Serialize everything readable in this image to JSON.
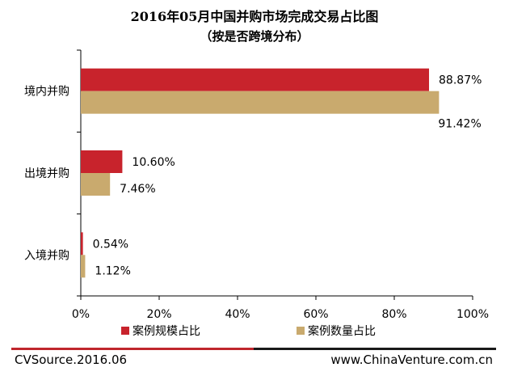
{
  "chart_data": {
    "type": "bar",
    "orientation": "horizontal",
    "title": "2016年05月中国并购市场完成交易占比图",
    "subtitle": "（按是否跨境分布）",
    "categories": [
      "境内并购",
      "出境并购",
      "入境并购"
    ],
    "series": [
      {
        "name": "案例规模占比",
        "color": "#c8232c",
        "values": [
          88.87,
          10.6,
          0.54
        ],
        "labels": [
          "88.87%",
          "10.60%",
          "0.54%"
        ]
      },
      {
        "name": "案例数量占比",
        "color": "#c9aa6e",
        "values": [
          91.42,
          7.46,
          1.12
        ],
        "labels": [
          "91.42%",
          "7.46%",
          "1.12%"
        ]
      }
    ],
    "xlim": [
      0,
      100
    ],
    "xticks": [
      "0%",
      "20%",
      "40%",
      "60%",
      "80%",
      "100%"
    ],
    "grid": false,
    "legend_position": "bottom"
  },
  "footer": {
    "source": "CVSource.2016.06",
    "website": "www.ChinaVenture.com.cn"
  }
}
